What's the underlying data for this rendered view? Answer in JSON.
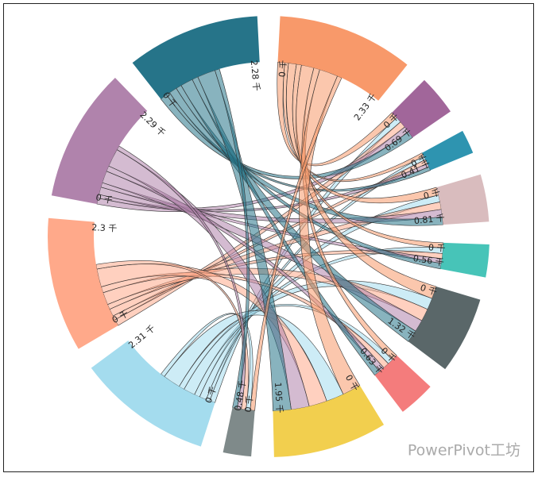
{
  "chart_data": {
    "type": "chord",
    "groups": [
      {
        "color": "#f8996a",
        "ticks": [
          {
            "value": 0,
            "label": "0 千"
          },
          {
            "value": 2.33,
            "label": "2.33 千"
          }
        ]
      },
      {
        "color": "#a1669a",
        "ticks": [
          {
            "value": 0,
            "label": "0 千"
          },
          {
            "value": 0.69,
            "label": "0.69 千"
          }
        ]
      },
      {
        "color": "#2e94b0",
        "ticks": [
          {
            "value": 0,
            "label": "0 千"
          },
          {
            "value": 0.41,
            "label": "0.41 千"
          }
        ]
      },
      {
        "color": "#d9bcbe",
        "ticks": [
          {
            "value": 0,
            "label": "0 千"
          },
          {
            "value": 0.81,
            "label": "0.81 千"
          }
        ]
      },
      {
        "color": "#47c4b8",
        "ticks": [
          {
            "value": 0,
            "label": "0 千"
          },
          {
            "value": 0.56,
            "label": "0.56 千"
          }
        ]
      },
      {
        "color": "#5a6769",
        "ticks": [
          {
            "value": 0,
            "label": "0 千"
          },
          {
            "value": 1.32,
            "label": "1.32 千"
          }
        ]
      },
      {
        "color": "#f47c7c",
        "ticks": [
          {
            "value": 0,
            "label": "0 千"
          },
          {
            "value": 0.63,
            "label": "0.63 千"
          }
        ]
      },
      {
        "color": "#f2cf4e",
        "ticks": [
          {
            "value": 0,
            "label": "0 千"
          },
          {
            "value": 1.95,
            "label": "1.95 千"
          }
        ]
      },
      {
        "color": "#7f8a8a",
        "ticks": [
          {
            "value": 0,
            "label": "0 千"
          },
          {
            "value": 0.48,
            "label": "0.48 千"
          }
        ]
      },
      {
        "color": "#a4dcee",
        "ticks": [
          {
            "value": 0,
            "label": "0 千"
          },
          {
            "value": 2.31,
            "label": "2.31 千"
          }
        ]
      },
      {
        "color": "#ffa98a",
        "ticks": [
          {
            "value": 0,
            "label": "0 千"
          },
          {
            "value": 2.3,
            "label": "2.3 千"
          }
        ]
      },
      {
        "color": "#b083ac",
        "ticks": [
          {
            "value": 0,
            "label": "0 千"
          },
          {
            "value": 2.29,
            "label": "2.29 千"
          }
        ]
      },
      {
        "color": "#267489",
        "ticks": [
          {
            "value": 0,
            "label": "0 千"
          },
          {
            "value": 2.28,
            "label": "2.28 千"
          }
        ]
      }
    ],
    "flows": [
      {
        "source": 0,
        "target": 1,
        "value": 0.15
      },
      {
        "source": 9,
        "target": 1,
        "value": 0.12
      },
      {
        "source": 10,
        "target": 1,
        "value": 0.14
      },
      {
        "source": 11,
        "target": 1,
        "value": 0.13
      },
      {
        "source": 12,
        "target": 1,
        "value": 0.15
      },
      {
        "source": 0,
        "target": 2,
        "value": 0.08
      },
      {
        "source": 9,
        "target": 2,
        "value": 0.08
      },
      {
        "source": 10,
        "target": 2,
        "value": 0.09
      },
      {
        "source": 11,
        "target": 2,
        "value": 0.08
      },
      {
        "source": 12,
        "target": 2,
        "value": 0.08
      },
      {
        "source": 0,
        "target": 3,
        "value": 0.17
      },
      {
        "source": 9,
        "target": 3,
        "value": 0.15
      },
      {
        "source": 10,
        "target": 3,
        "value": 0.16
      },
      {
        "source": 11,
        "target": 3,
        "value": 0.16
      },
      {
        "source": 12,
        "target": 3,
        "value": 0.17
      },
      {
        "source": 0,
        "target": 4,
        "value": 0.11
      },
      {
        "source": 9,
        "target": 4,
        "value": 0.12
      },
      {
        "source": 10,
        "target": 4,
        "value": 0.11
      },
      {
        "source": 11,
        "target": 4,
        "value": 0.1
      },
      {
        "source": 12,
        "target": 4,
        "value": 0.12
      },
      {
        "source": 0,
        "target": 5,
        "value": 0.27
      },
      {
        "source": 9,
        "target": 5,
        "value": 0.25
      },
      {
        "source": 10,
        "target": 5,
        "value": 0.27
      },
      {
        "source": 11,
        "target": 5,
        "value": 0.26
      },
      {
        "source": 12,
        "target": 5,
        "value": 0.27
      },
      {
        "source": 0,
        "target": 6,
        "value": 0.13
      },
      {
        "source": 9,
        "target": 6,
        "value": 0.12
      },
      {
        "source": 10,
        "target": 6,
        "value": 0.13
      },
      {
        "source": 11,
        "target": 6,
        "value": 0.12
      },
      {
        "source": 12,
        "target": 6,
        "value": 0.13
      },
      {
        "source": 0,
        "target": 7,
        "value": 0.4
      },
      {
        "source": 9,
        "target": 7,
        "value": 0.38
      },
      {
        "source": 10,
        "target": 7,
        "value": 0.39
      },
      {
        "source": 11,
        "target": 7,
        "value": 0.39
      },
      {
        "source": 12,
        "target": 7,
        "value": 0.39
      },
      {
        "source": 0,
        "target": 8,
        "value": 0.1
      },
      {
        "source": 9,
        "target": 8,
        "value": 0.09
      },
      {
        "source": 10,
        "target": 8,
        "value": 0.1
      },
      {
        "source": 11,
        "target": 8,
        "value": 0.09
      },
      {
        "source": 12,
        "target": 8,
        "value": 0.1
      }
    ],
    "watermark": "PowerPivot工坊"
  }
}
